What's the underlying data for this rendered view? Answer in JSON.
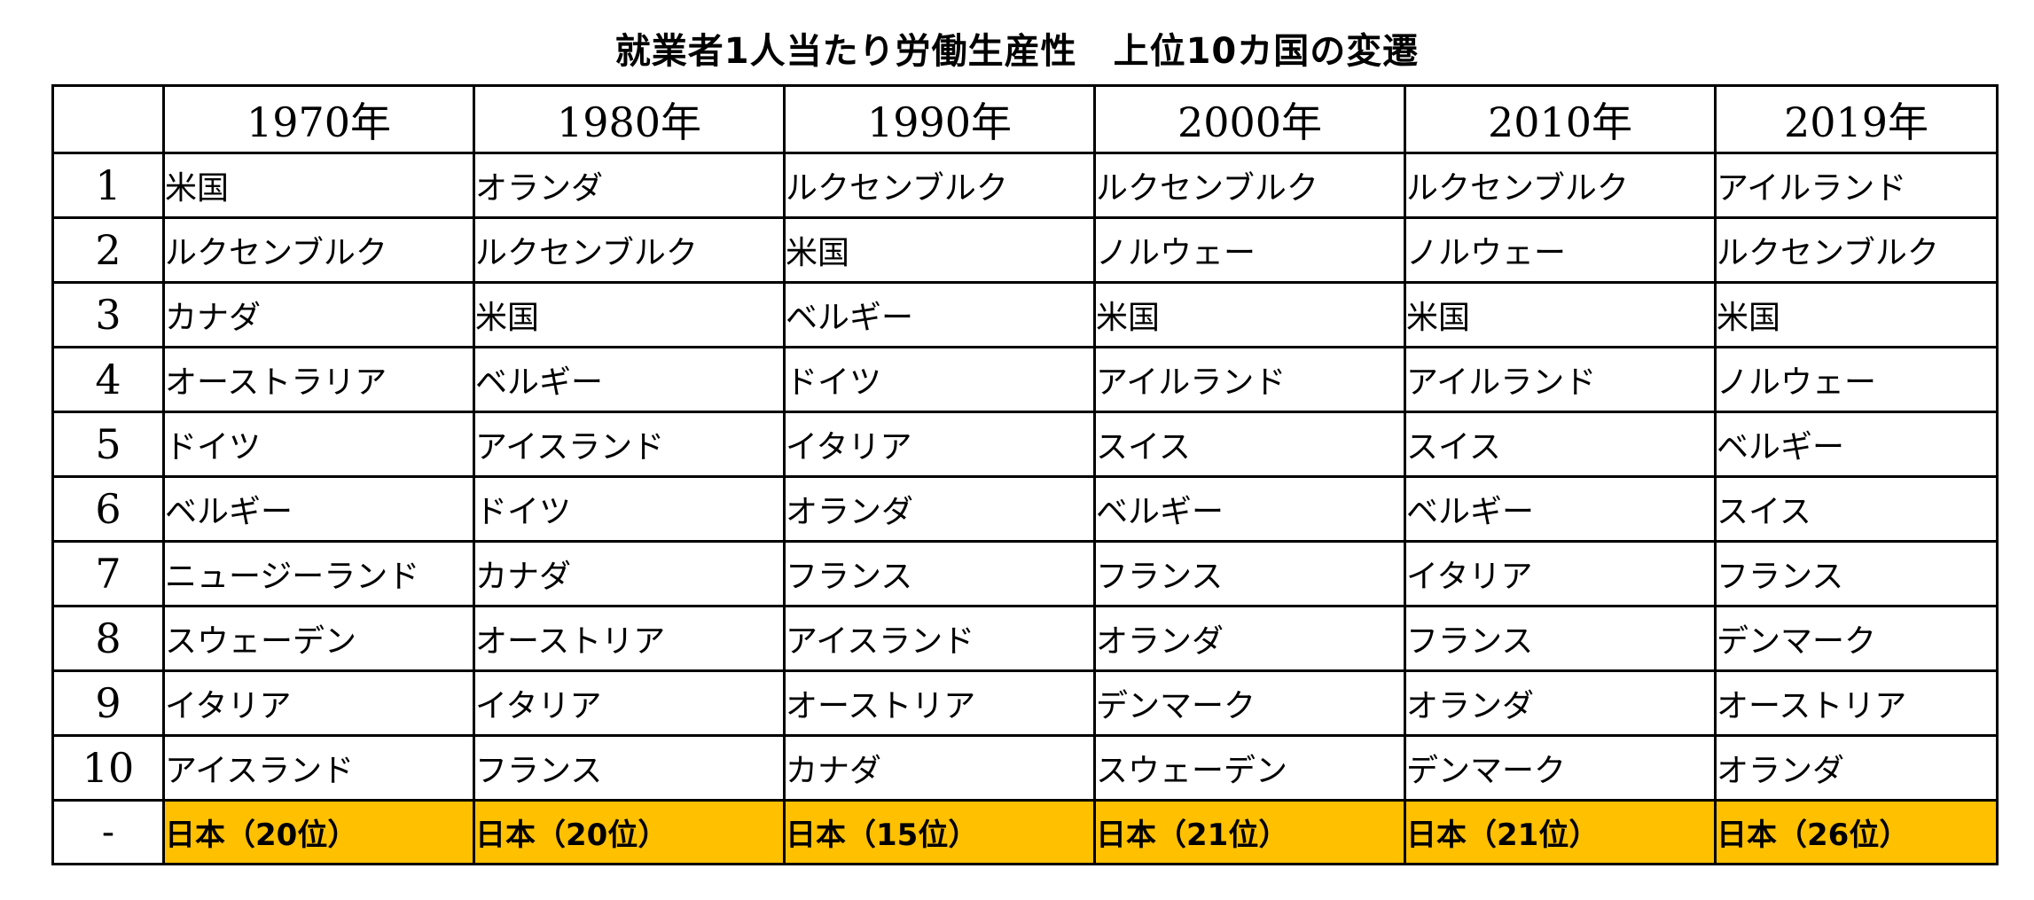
{
  "title": "就業者1人当たり労働生産性　上位10カ国の変遷",
  "years": [
    "1970年",
    "1980年",
    "1990年",
    "2000年",
    "2010年",
    "2019年"
  ],
  "rows": [
    {
      "rank": "1",
      "countries": [
        "米国",
        "オランダ",
        "ルクセンブルク",
        "ルクセンブルク",
        "ルクセンブルク",
        "アイルランド"
      ]
    },
    {
      "rank": "2",
      "countries": [
        "ルクセンブルク",
        "ルクセンブルク",
        "米国",
        "ノルウェー",
        "ノルウェー",
        "ルクセンブルク"
      ]
    },
    {
      "rank": "3",
      "countries": [
        "カナダ",
        "米国",
        "ベルギー",
        "米国",
        "米国",
        "米国"
      ]
    },
    {
      "rank": "4",
      "countries": [
        "オーストラリア",
        "ベルギー",
        "ドイツ",
        "アイルランド",
        "アイルランド",
        "ノルウェー"
      ]
    },
    {
      "rank": "5",
      "countries": [
        "ドイツ",
        "アイスランド",
        "イタリア",
        "スイス",
        "スイス",
        "ベルギー"
      ]
    },
    {
      "rank": "6",
      "countries": [
        "ベルギー",
        "ドイツ",
        "オランダ",
        "ベルギー",
        "ベルギー",
        "スイス"
      ]
    },
    {
      "rank": "7",
      "countries": [
        "ニュージーランド",
        "カナダ",
        "フランス",
        "フランス",
        "イタリア",
        "フランス"
      ]
    },
    {
      "rank": "8",
      "countries": [
        "スウェーデン",
        "オーストリア",
        "アイスランド",
        "オランダ",
        "フランス",
        "デンマーク"
      ]
    },
    {
      "rank": "9",
      "countries": [
        "イタリア",
        "イタリア",
        "オーストリア",
        "デンマーク",
        "オランダ",
        "オーストリア"
      ]
    },
    {
      "rank": "10",
      "countries": [
        "アイスランド",
        "フランス",
        "カナダ",
        "スウェーデン",
        "デンマーク",
        "オランダ"
      ]
    }
  ],
  "japan_row": {
    "rank": "-",
    "cells": [
      "日本（20位）",
      "日本（20位）",
      "日本（15位）",
      "日本（21位）",
      "日本（21位）",
      "日本（26位）"
    ],
    "highlight_color": "#ffc000"
  }
}
